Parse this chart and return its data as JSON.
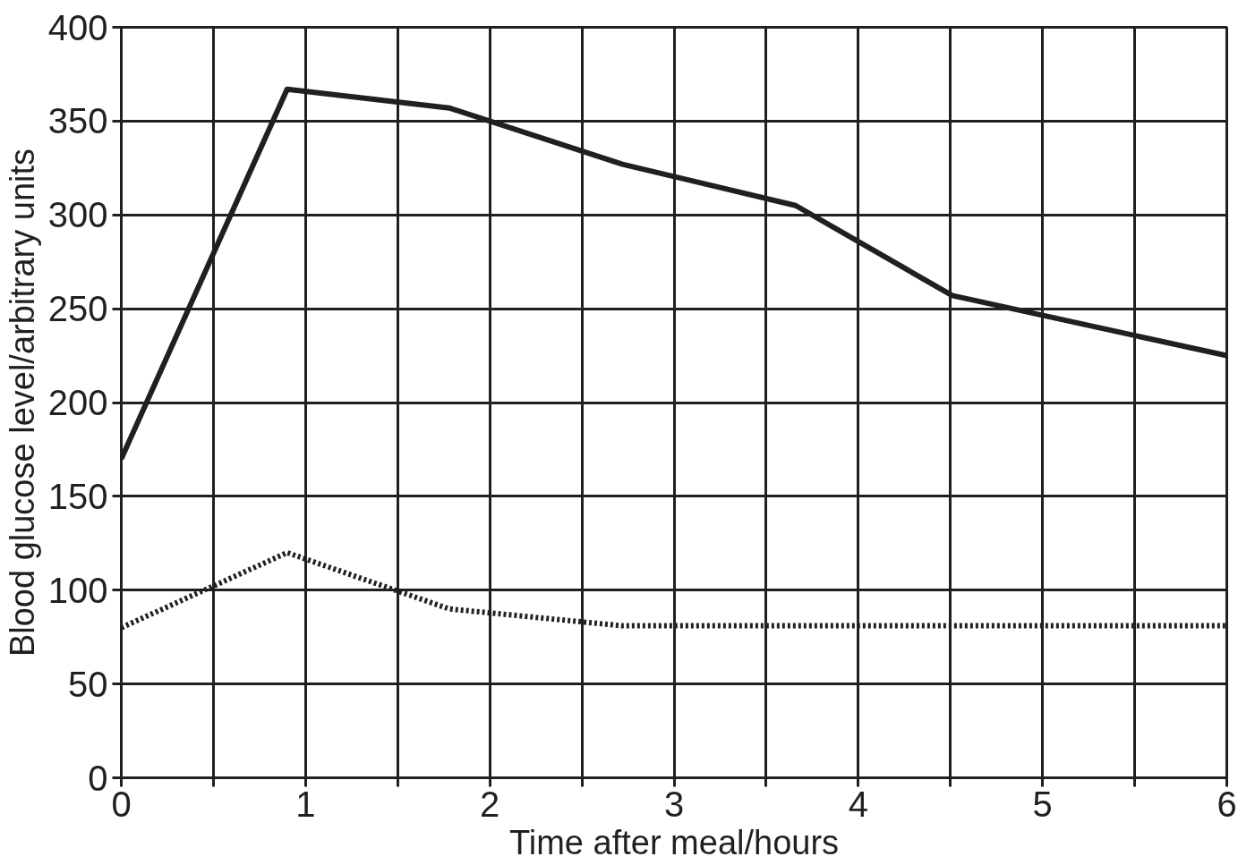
{
  "chart_data": {
    "type": "line",
    "xlabel": "Time after meal/hours",
    "ylabel": "Blood glucose level/arbitrary units",
    "xlim": [
      0,
      6
    ],
    "ylim": [
      0,
      400
    ],
    "xticks": [
      0,
      {
        "value": 0.5,
        "label": null
      },
      1,
      {
        "value": 1.5,
        "label": null
      },
      2,
      {
        "value": 2.5,
        "label": null
      },
      3,
      {
        "value": 3.5,
        "label": null
      },
      4,
      {
        "value": 4.5,
        "label": null
      },
      5,
      {
        "value": 5.5,
        "label": null
      },
      6
    ],
    "yticks": [
      0,
      50,
      100,
      150,
      200,
      250,
      300,
      350,
      400
    ],
    "grid": true,
    "marker": "none",
    "series": [
      {
        "color": "#231f20",
        "line_style": "solid",
        "x": [
          0,
          0.9,
          1.78,
          2.72,
          3.66,
          4.51,
          6
        ],
        "values": [
          170,
          367,
          357,
          327,
          305,
          257,
          225
        ]
      },
      {
        "color": "#231f20",
        "line_style": "dotted",
        "x": [
          0,
          0.9,
          1.78,
          2.72,
          6
        ],
        "values": [
          80,
          120,
          90,
          81,
          81
        ]
      }
    ]
  }
}
